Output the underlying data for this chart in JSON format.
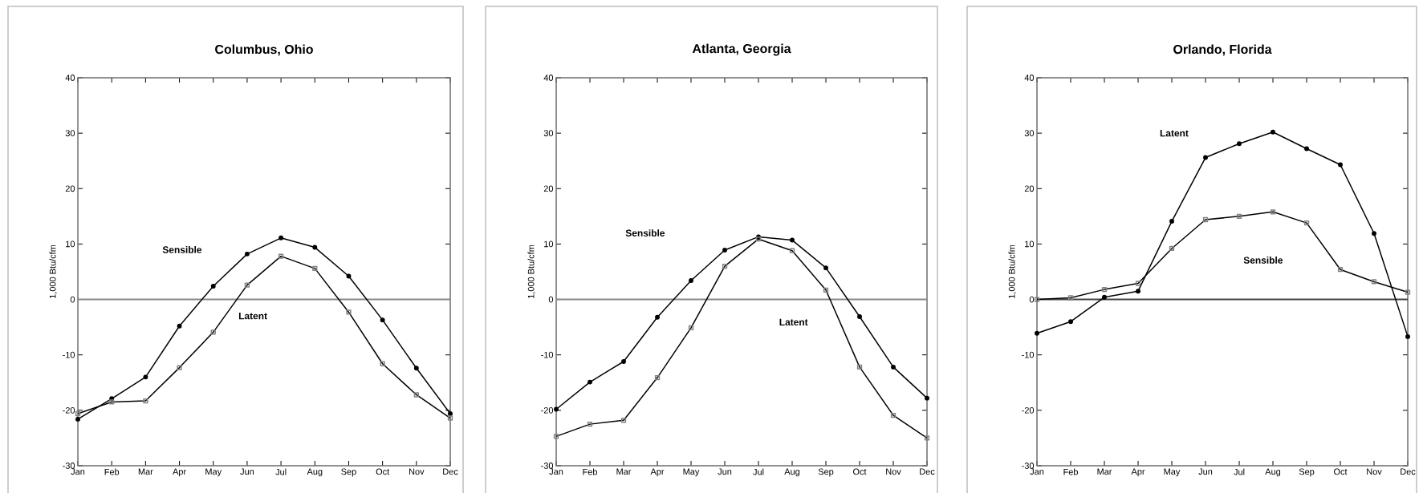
{
  "chart_data": [
    {
      "type": "line",
      "title": "Columbus, Ohio",
      "ylabel": "1,000 Btu/cfm",
      "categories": [
        "Jan",
        "Feb",
        "Mar",
        "Apr",
        "May",
        "Jun",
        "Jul",
        "Aug",
        "Sep",
        "Oct",
        "Nov",
        "Dec"
      ],
      "series": [
        {
          "color": "#000000",
          "marker": "circle",
          "values": [
            -21.6,
            -17.9,
            -14.0,
            -4.8,
            2.4,
            8.2,
            11.1,
            9.4,
            4.2,
            -3.7,
            -12.4,
            -20.6
          ]
        },
        {
          "color": "#000000",
          "marker": "square",
          "values": [
            -20.6,
            -18.5,
            -18.3,
            -12.3,
            -5.9,
            2.6,
            7.8,
            5.6,
            -2.3,
            -11.6,
            -17.2,
            -21.4
          ]
        }
      ],
      "annotations": [
        "Sensible",
        "Latent"
      ],
      "ref_lines": [
        {
          "axis": "y",
          "value": 0,
          "color": "#888888"
        }
      ],
      "ylim": [
        -30,
        40
      ],
      "yticks": [
        -30,
        -20,
        -10,
        0,
        10,
        20,
        30,
        40
      ],
      "grid": false
    },
    {
      "type": "line",
      "title": "Atlanta, Georgia",
      "ylabel": "1,000 Btu/cfm",
      "categories": [
        "Jan",
        "Feb",
        "Mar",
        "Apr",
        "May",
        "Jun",
        "Jul",
        "Aug",
        "Sep",
        "Oct",
        "Nov",
        "Dec"
      ],
      "series": [
        {
          "color": "#000000",
          "marker": "circle",
          "values": [
            -19.8,
            -14.9,
            -11.2,
            -3.2,
            3.4,
            8.9,
            11.3,
            10.7,
            5.7,
            -3.1,
            -12.2,
            -17.8
          ]
        },
        {
          "color": "#000000",
          "marker": "square",
          "values": [
            -24.7,
            -22.5,
            -21.8,
            -14.1,
            -5.1,
            6.0,
            10.9,
            8.8,
            1.7,
            -12.2,
            -20.9,
            -25.0
          ]
        }
      ],
      "annotations": [
        "Sensible",
        "Latent"
      ],
      "ref_lines": [
        {
          "axis": "y",
          "value": 0,
          "color": "#888888"
        }
      ],
      "ylim": [
        -30,
        40
      ],
      "yticks": [
        -30,
        -20,
        -10,
        0,
        10,
        20,
        30,
        40
      ],
      "grid": false
    },
    {
      "type": "line",
      "title": "Orlando, Florida",
      "ylabel": "1,000 Btu/cfm",
      "categories": [
        "Jan",
        "Feb",
        "Mar",
        "Apr",
        "May",
        "Jun",
        "Jul",
        "Aug",
        "Sep",
        "Oct",
        "Nov",
        "Dec"
      ],
      "series": [
        {
          "color": "#000000",
          "marker": "circle",
          "values": [
            -6.1,
            -4.0,
            0.4,
            1.5,
            14.1,
            25.6,
            28.1,
            30.2,
            27.2,
            24.3,
            11.9,
            -6.7
          ]
        },
        {
          "color": "#000000",
          "marker": "square",
          "values": [
            0.0,
            0.3,
            1.8,
            2.9,
            9.2,
            14.4,
            15.0,
            15.8,
            13.8,
            5.4,
            3.2,
            1.3
          ]
        }
      ],
      "annotations": [
        "Latent",
        "Sensible"
      ],
      "ref_lines": [
        {
          "axis": "y",
          "value": 0,
          "color": "#444444"
        }
      ],
      "ylim": [
        -30,
        40
      ],
      "yticks": [
        -30,
        -20,
        -10,
        0,
        10,
        20,
        30,
        40
      ],
      "grid": false
    }
  ]
}
